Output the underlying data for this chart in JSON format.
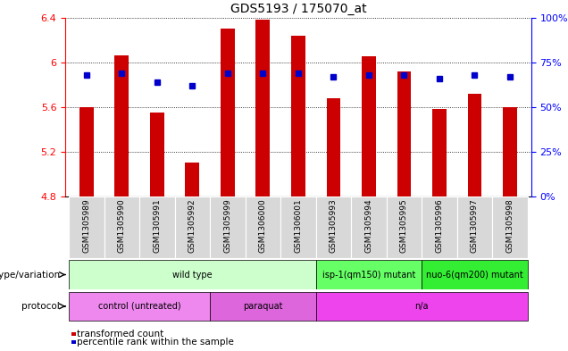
{
  "title": "GDS5193 / 175070_at",
  "samples": [
    "GSM1305989",
    "GSM1305990",
    "GSM1305991",
    "GSM1305992",
    "GSM1305999",
    "GSM1306000",
    "GSM1306001",
    "GSM1305993",
    "GSM1305994",
    "GSM1305995",
    "GSM1305996",
    "GSM1305997",
    "GSM1305998"
  ],
  "transformed_counts": [
    5.6,
    6.06,
    5.55,
    5.1,
    6.3,
    6.38,
    6.24,
    5.68,
    6.05,
    5.92,
    5.58,
    5.72,
    5.6
  ],
  "percentile_ranks": [
    68,
    69,
    64,
    62,
    69,
    69,
    69,
    67,
    68,
    68,
    66,
    68,
    67
  ],
  "ymin": 4.8,
  "ymax": 6.4,
  "yticks": [
    4.8,
    5.2,
    5.6,
    6.0,
    6.4
  ],
  "right_yticks": [
    0,
    25,
    50,
    75,
    100
  ],
  "bar_color": "#cc0000",
  "dot_color": "#0000cc",
  "bar_width": 0.4,
  "genotype_groups": [
    {
      "label": "wild type",
      "start": 0,
      "end": 6,
      "color": "#ccffcc"
    },
    {
      "label": "isp-1(qm150) mutant",
      "start": 7,
      "end": 9,
      "color": "#66ff66"
    },
    {
      "label": "nuo-6(qm200) mutant",
      "start": 10,
      "end": 12,
      "color": "#33ee33"
    }
  ],
  "protocol_groups": [
    {
      "label": "control (untreated)",
      "start": 0,
      "end": 3,
      "color": "#ee88ee"
    },
    {
      "label": "paraquat",
      "start": 4,
      "end": 6,
      "color": "#dd66dd"
    },
    {
      "label": "n/a",
      "start": 7,
      "end": 12,
      "color": "#ee44ee"
    }
  ],
  "genotype_label": "genotype/variation",
  "protocol_label": "protocol",
  "legend_red": "transformed count",
  "legend_blue": "percentile rank within the sample",
  "background_color": "#ffffff"
}
